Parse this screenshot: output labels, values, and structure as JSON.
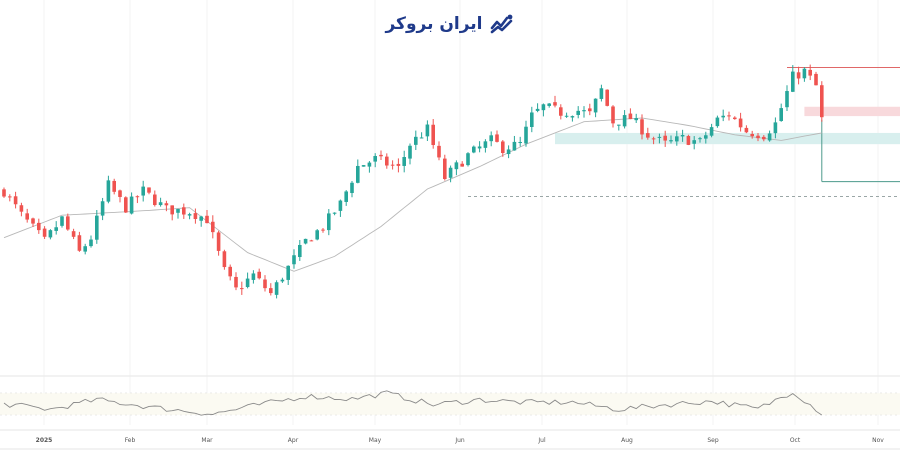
{
  "brand": {
    "logo_text": "ایران بروکر",
    "logo_color": "#1f3a8a",
    "logo_icon": "trend-line-icon"
  },
  "chart_data": {
    "type": "candlestick",
    "title": "",
    "xlabel": "",
    "ylabel": "",
    "x_ticks": [
      "2025",
      "Feb",
      "Mar",
      "Apr",
      "May",
      "Jun",
      "Jul",
      "Aug",
      "Sep",
      "Oct",
      "Nov"
    ],
    "price_anchors": [
      [
        0,
        0.55
      ],
      [
        3,
        0.42
      ],
      [
        7,
        0.28
      ],
      [
        10,
        0.4
      ],
      [
        13,
        0.22
      ],
      [
        15,
        0.3
      ],
      [
        18,
        0.58
      ],
      [
        21,
        0.46
      ],
      [
        24,
        0.55
      ],
      [
        28,
        0.45
      ],
      [
        32,
        0.44
      ],
      [
        35,
        0.4
      ],
      [
        38,
        0.12
      ],
      [
        40,
        0.02
      ],
      [
        43,
        0.1
      ],
      [
        46,
        0.0
      ],
      [
        49,
        0.14
      ],
      [
        52,
        0.28
      ],
      [
        55,
        0.36
      ],
      [
        58,
        0.48
      ],
      [
        61,
        0.68
      ],
      [
        64,
        0.72
      ],
      [
        68,
        0.67
      ],
      [
        70,
        0.8
      ],
      [
        73,
        0.88
      ],
      [
        76,
        0.62
      ],
      [
        80,
        0.74
      ],
      [
        84,
        0.82
      ],
      [
        86,
        0.78
      ],
      [
        89,
        0.8
      ],
      [
        91,
        0.95
      ],
      [
        93,
        1.0
      ],
      [
        96,
        0.97
      ],
      [
        99,
        0.98
      ],
      [
        101,
        0.96
      ],
      [
        103,
        1.09
      ],
      [
        105,
        0.92
      ],
      [
        108,
        0.94
      ],
      [
        111,
        0.85
      ],
      [
        114,
        0.8
      ],
      [
        117,
        0.83
      ],
      [
        120,
        0.81
      ],
      [
        123,
        0.93
      ],
      [
        125,
        0.96
      ],
      [
        128,
        0.87
      ],
      [
        131,
        0.85
      ],
      [
        133,
        0.91
      ],
      [
        136,
        1.16
      ],
      [
        138,
        1.19
      ],
      [
        140,
        1.11
      ],
      [
        141,
        0.93
      ]
    ],
    "ma_anchors": [
      [
        0,
        0.3
      ],
      [
        10,
        0.42
      ],
      [
        22,
        0.44
      ],
      [
        32,
        0.46
      ],
      [
        42,
        0.22
      ],
      [
        50,
        0.12
      ],
      [
        57,
        0.2
      ],
      [
        65,
        0.36
      ],
      [
        73,
        0.56
      ],
      [
        82,
        0.68
      ],
      [
        90,
        0.8
      ],
      [
        100,
        0.92
      ],
      [
        110,
        0.94
      ],
      [
        118,
        0.9
      ],
      [
        126,
        0.85
      ],
      [
        134,
        0.82
      ],
      [
        141,
        0.86
      ]
    ],
    "levels": [
      {
        "name": "resistance-line",
        "value": 1.21,
        "color": "#e06767",
        "style": "solid"
      },
      {
        "name": "dashed-support",
        "value": 0.52,
        "color": "#9aa6a6",
        "style": "dashed"
      },
      {
        "name": "lower-line",
        "value": 0.6,
        "color": "#4c9a8c",
        "style": "solid"
      }
    ],
    "zones": [
      {
        "name": "supply-zone",
        "low": 0.95,
        "high": 1.0,
        "color": "#f8d9dc"
      },
      {
        "name": "demand-zone",
        "low": 0.8,
        "high": 0.86,
        "color": "#d8efee"
      }
    ],
    "indicator": {
      "type": "oscillator",
      "levels": [
        0.8,
        0.5,
        0.2
      ],
      "anchors": [
        [
          0,
          0.5
        ],
        [
          8,
          0.35
        ],
        [
          16,
          0.62
        ],
        [
          26,
          0.4
        ],
        [
          36,
          0.22
        ],
        [
          44,
          0.48
        ],
        [
          52,
          0.72
        ],
        [
          60,
          0.64
        ],
        [
          66,
          0.8
        ],
        [
          74,
          0.48
        ],
        [
          82,
          0.62
        ],
        [
          90,
          0.54
        ],
        [
          98,
          0.55
        ],
        [
          106,
          0.35
        ],
        [
          114,
          0.48
        ],
        [
          122,
          0.58
        ],
        [
          130,
          0.36
        ],
        [
          136,
          0.85
        ],
        [
          141,
          0.24
        ]
      ]
    },
    "colors": {
      "up": "#26a69a",
      "down": "#ef5350",
      "ma": "#b8b8b8",
      "indicator": "#8a8a8a"
    }
  }
}
